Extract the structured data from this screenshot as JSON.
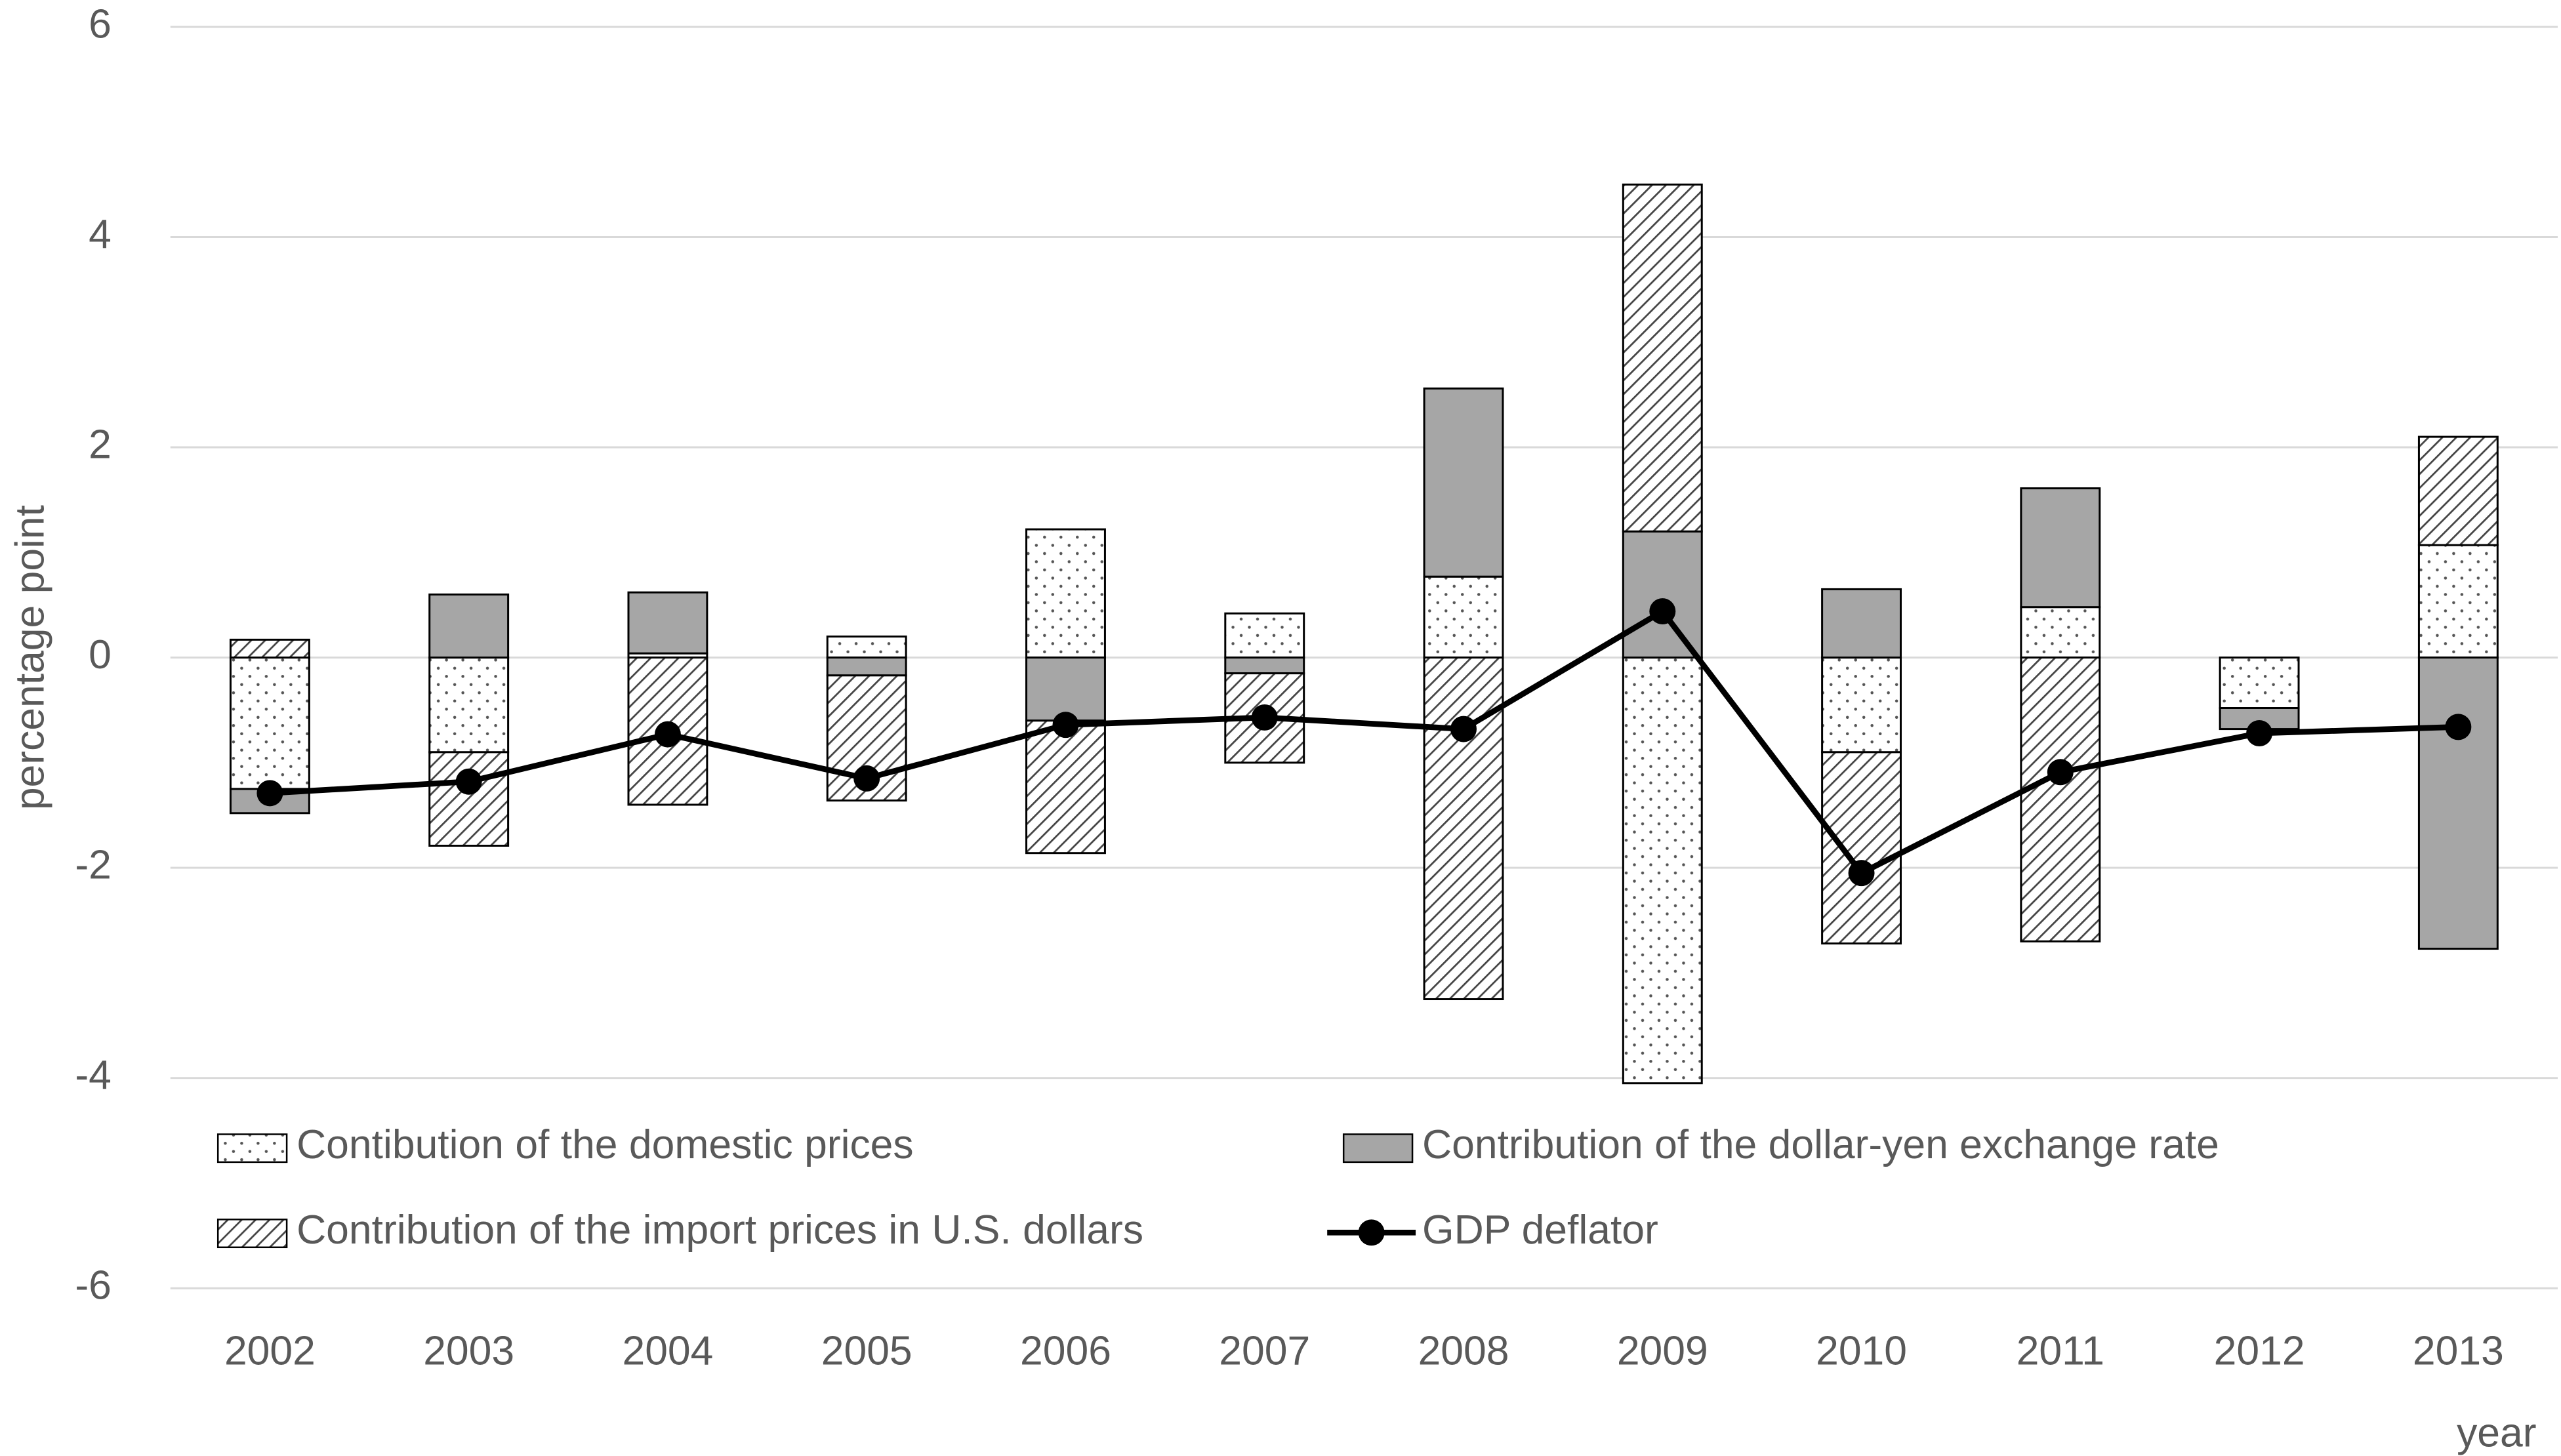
{
  "chart_data": {
    "type": "bar",
    "stacked": true,
    "y_label": "percentage point",
    "x_label": "year",
    "categories": [
      "2002",
      "2003",
      "2004",
      "2005",
      "2006",
      "2007",
      "2008",
      "2009",
      "2010",
      "2011",
      "2012",
      "2013"
    ],
    "series": [
      {
        "name": "Contibution of the domestic prices",
        "color": "#ffffff",
        "pattern": "dots",
        "values": [
          -1.25,
          -0.9,
          0.04,
          0.2,
          1.22,
          0.42,
          0.77,
          -4.05,
          -0.9,
          0.48,
          -0.48,
          1.07
        ]
      },
      {
        "name": "Contribution of the dollar-yen exchange rate",
        "color": "#a6a6a6",
        "pattern": "solid",
        "values": [
          -0.23,
          0.6,
          0.58,
          -0.17,
          -0.6,
          -0.15,
          1.79,
          1.2,
          0.65,
          1.13,
          -0.2,
          -2.77
        ]
      },
      {
        "name": "Contribution of the import prices in U.S. dollars",
        "color": "#ffffff",
        "pattern": "hatch",
        "values": [
          0.17,
          -0.89,
          -1.4,
          -1.19,
          -1.26,
          -0.85,
          -3.25,
          3.3,
          -1.82,
          -2.7,
          0,
          1.03
        ]
      },
      {
        "name": "GDP deflator",
        "color": "#000000",
        "type": "line",
        "values": [
          -1.29,
          -1.18,
          -0.73,
          -1.15,
          -0.64,
          -0.57,
          -0.68,
          0.44,
          -2.05,
          -1.09,
          -0.72,
          -0.66
        ]
      }
    ],
    "ylim": [
      -6,
      6
    ],
    "yticks": [
      -6,
      -4,
      -2,
      0,
      2,
      4,
      6
    ],
    "grid": true
  }
}
